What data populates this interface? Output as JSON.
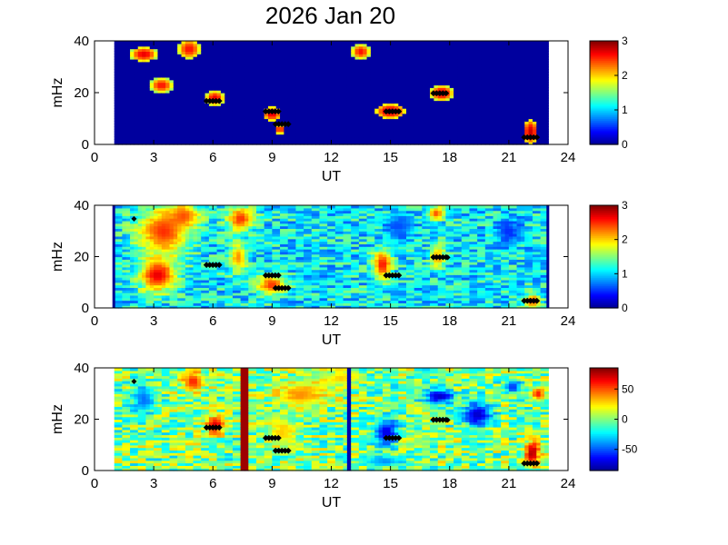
{
  "title": "2026 Jan 20",
  "colormap": [
    "#00008f",
    "#0000ff",
    "#0080ff",
    "#00ffff",
    "#80ff80",
    "#ffff00",
    "#ff8000",
    "#ff0000",
    "#800000"
  ],
  "marker_color": "#000000",
  "chart_data": [
    {
      "type": "heatmap",
      "xlabel": "UT",
      "ylabel": "mHz",
      "xlim": [
        0,
        24
      ],
      "ylim": [
        0,
        40
      ],
      "xticks": [
        0,
        3,
        6,
        9,
        12,
        15,
        18,
        21,
        24
      ],
      "yticks": [
        0,
        20,
        40
      ],
      "colorbar": {
        "range": [
          0,
          3
        ],
        "ticks": [
          0,
          1,
          2,
          3
        ]
      },
      "data_extent_ut": [
        1,
        23
      ],
      "background_level": 0.05,
      "blobs": [
        {
          "ut": 2.5,
          "mhz": 35,
          "w": 0.7,
          "h": 3,
          "level": 2.7
        },
        {
          "ut": 4.8,
          "mhz": 37,
          "w": 0.6,
          "h": 4,
          "level": 2.6
        },
        {
          "ut": 3.4,
          "mhz": 23,
          "w": 0.6,
          "h": 3,
          "level": 2.6
        },
        {
          "ut": 6.1,
          "mhz": 18,
          "w": 0.5,
          "h": 3,
          "level": 2.7
        },
        {
          "ut": 9.0,
          "mhz": 12,
          "w": 0.5,
          "h": 3,
          "level": 2.7
        },
        {
          "ut": 9.4,
          "mhz": 6,
          "w": 0.3,
          "h": 2,
          "level": 2.6
        },
        {
          "ut": 13.5,
          "mhz": 36,
          "w": 0.5,
          "h": 3,
          "level": 2.6
        },
        {
          "ut": 15.0,
          "mhz": 13,
          "w": 0.8,
          "h": 3,
          "level": 2.8
        },
        {
          "ut": 17.6,
          "mhz": 20,
          "w": 0.6,
          "h": 3,
          "level": 2.8
        },
        {
          "ut": 22.1,
          "mhz": 5,
          "w": 0.4,
          "h": 5,
          "level": 2.8
        }
      ],
      "markers": [
        {
          "ut": 6.0,
          "mhz": 17
        },
        {
          "ut": 9.0,
          "mhz": 13
        },
        {
          "ut": 9.5,
          "mhz": 8
        },
        {
          "ut": 15.1,
          "mhz": 13
        },
        {
          "ut": 17.5,
          "mhz": 20
        },
        {
          "ut": 22.1,
          "mhz": 3
        }
      ]
    },
    {
      "type": "heatmap",
      "xlabel": "UT",
      "ylabel": "mHz",
      "xlim": [
        0,
        24
      ],
      "ylim": [
        0,
        40
      ],
      "xticks": [
        0,
        3,
        6,
        9,
        12,
        15,
        18,
        21,
        24
      ],
      "yticks": [
        0,
        20,
        40
      ],
      "colorbar": {
        "range": [
          0,
          3
        ],
        "ticks": [
          0,
          1,
          2,
          3
        ]
      },
      "data_extent_ut": [
        1,
        23
      ],
      "background_level": 1.1,
      "blobs": [
        {
          "ut": 3.5,
          "mhz": 30,
          "w": 1.4,
          "h": 10,
          "level": 2.5
        },
        {
          "ut": 3.2,
          "mhz": 13,
          "w": 1.0,
          "h": 7,
          "level": 2.7
        },
        {
          "ut": 4.5,
          "mhz": 36,
          "w": 0.9,
          "h": 5,
          "level": 2.4
        },
        {
          "ut": 7.4,
          "mhz": 35,
          "w": 0.7,
          "h": 5,
          "level": 2.5
        },
        {
          "ut": 7.3,
          "mhz": 20,
          "w": 0.5,
          "h": 6,
          "level": 2.2
        },
        {
          "ut": 9.0,
          "mhz": 9,
          "w": 0.8,
          "h": 4,
          "level": 2.5
        },
        {
          "ut": 14.6,
          "mhz": 17,
          "w": 0.5,
          "h": 6,
          "level": 2.6
        },
        {
          "ut": 17.3,
          "mhz": 37,
          "w": 0.4,
          "h": 3,
          "level": 2.4
        },
        {
          "ut": 17.4,
          "mhz": 20,
          "w": 0.4,
          "h": 5,
          "level": 2.2
        },
        {
          "ut": 21.0,
          "mhz": 30,
          "w": 0.7,
          "h": 6,
          "level": 0.5
        },
        {
          "ut": 15.5,
          "mhz": 32,
          "w": 0.8,
          "h": 5,
          "level": 0.6
        },
        {
          "ut": 22.2,
          "mhz": 3,
          "w": 0.4,
          "h": 3,
          "level": 2.5
        }
      ],
      "edge_lines_ut": [
        1,
        23
      ],
      "markers": [
        {
          "ut": 6.0,
          "mhz": 17
        },
        {
          "ut": 9.0,
          "mhz": 13
        },
        {
          "ut": 9.5,
          "mhz": 8
        },
        {
          "ut": 15.1,
          "mhz": 13
        },
        {
          "ut": 17.5,
          "mhz": 20
        },
        {
          "ut": 22.1,
          "mhz": 3
        }
      ],
      "red_markers": [
        {
          "ut": 2.0,
          "mhz": 35
        },
        {
          "ut": 17.9,
          "mhz": 20
        }
      ]
    },
    {
      "type": "heatmap",
      "xlabel": "UT",
      "ylabel": "mHz",
      "xlim": [
        0,
        24
      ],
      "ylim": [
        0,
        40
      ],
      "xticks": [
        0,
        3,
        6,
        9,
        12,
        15,
        18,
        21,
        24
      ],
      "yticks": [
        0,
        20,
        40
      ],
      "colorbar": {
        "range": [
          -85,
          85
        ],
        "ticks": [
          50,
          0,
          -50
        ]
      },
      "data_extent_ut": [
        1,
        23
      ],
      "background_level": 0,
      "blobs": [
        {
          "ut": 5.0,
          "mhz": 35,
          "w": 0.6,
          "h": 4,
          "level": 60
        },
        {
          "ut": 6.1,
          "mhz": 18,
          "w": 0.5,
          "h": 4,
          "level": 70
        },
        {
          "ut": 2.5,
          "mhz": 28,
          "w": 0.7,
          "h": 6,
          "level": -45
        },
        {
          "ut": 10.5,
          "mhz": 30,
          "w": 1.5,
          "h": 5,
          "level": 40
        },
        {
          "ut": 9.5,
          "mhz": 15,
          "w": 0.8,
          "h": 5,
          "level": 30
        },
        {
          "ut": 14.8,
          "mhz": 15,
          "w": 0.6,
          "h": 6,
          "level": -70
        },
        {
          "ut": 17.5,
          "mhz": 29,
          "w": 0.8,
          "h": 3,
          "level": -75
        },
        {
          "ut": 19.4,
          "mhz": 22,
          "w": 0.8,
          "h": 5,
          "level": -75
        },
        {
          "ut": 21.2,
          "mhz": 33,
          "w": 0.5,
          "h": 3,
          "level": -55
        },
        {
          "ut": 22.2,
          "mhz": 7,
          "w": 0.4,
          "h": 5,
          "level": 80
        },
        {
          "ut": 22.5,
          "mhz": 30,
          "w": 0.4,
          "h": 3,
          "level": 60
        },
        {
          "ut": 14.6,
          "mhz": 4,
          "w": 1.2,
          "h": 2,
          "level": -40
        },
        {
          "ut": 12.5,
          "mhz": 36,
          "w": 1.0,
          "h": 3,
          "level": 30
        }
      ],
      "stripes": [
        {
          "ut": 7.6,
          "level": 80
        },
        {
          "ut": 12.9,
          "level": -80
        }
      ],
      "markers": [
        {
          "ut": 6.0,
          "mhz": 17
        },
        {
          "ut": 9.0,
          "mhz": 13
        },
        {
          "ut": 9.5,
          "mhz": 8
        },
        {
          "ut": 15.1,
          "mhz": 13
        },
        {
          "ut": 17.5,
          "mhz": 20
        },
        {
          "ut": 22.1,
          "mhz": 3
        }
      ],
      "red_markers": [
        {
          "ut": 2.0,
          "mhz": 35
        },
        {
          "ut": 17.9,
          "mhz": 20
        }
      ]
    }
  ]
}
